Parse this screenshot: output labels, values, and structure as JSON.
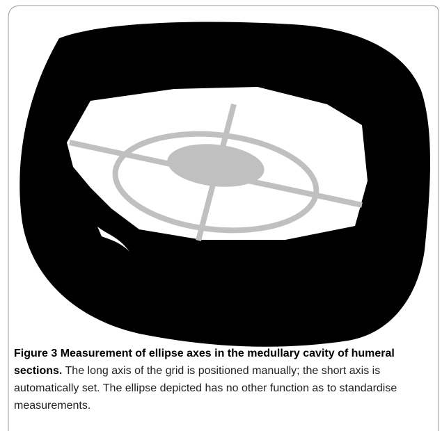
{
  "figure": {
    "label": "Figure 3",
    "title": "Measurement of ellipse axes in the medullary cavity of humeral sections.",
    "caption": "The long axis of the grid is positioned manually; the short axis is automatically set. The ellipse depicted has no other function as to standardise measurements."
  }
}
